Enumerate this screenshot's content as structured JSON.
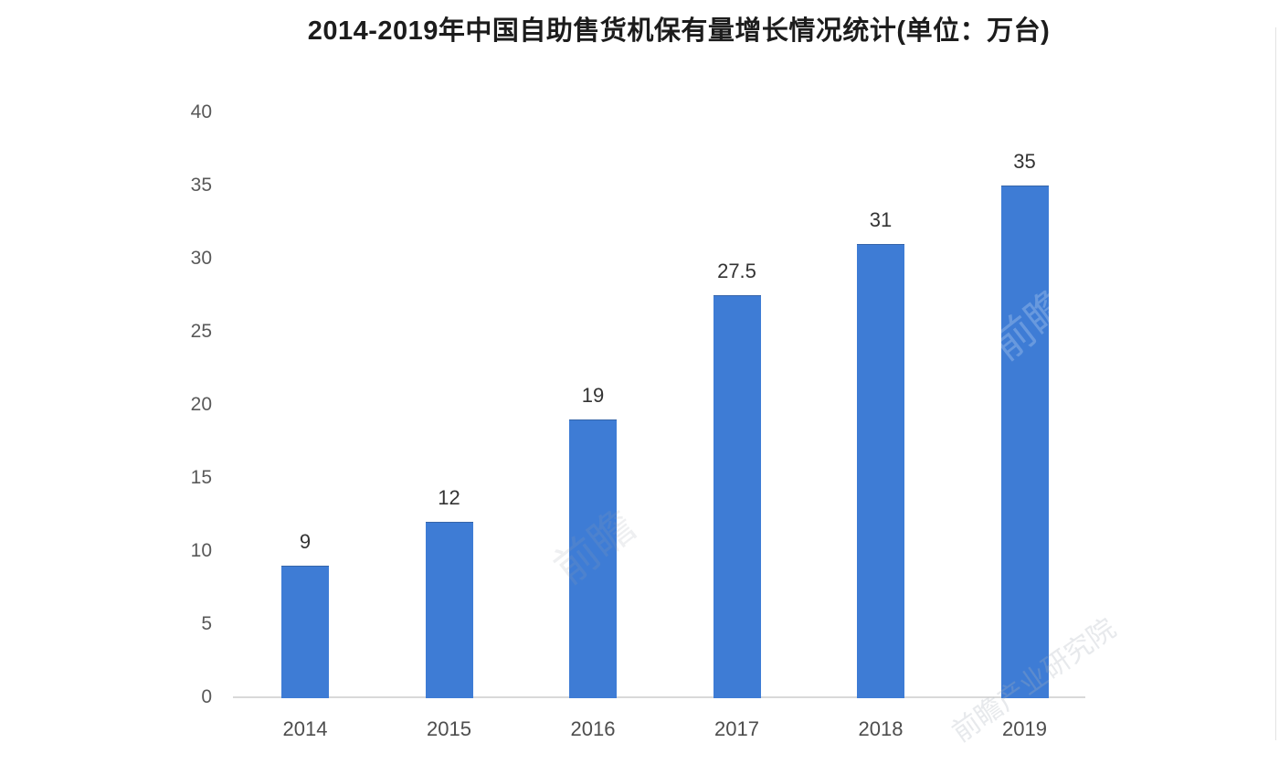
{
  "chart_data": {
    "type": "bar",
    "title": "2014-2019年中国自助售货机保有量增长情况统计(单位：万台)",
    "categories": [
      "2014",
      "2015",
      "2016",
      "2017",
      "2018",
      "2019"
    ],
    "values": [
      9,
      12,
      19,
      27.5,
      31,
      35
    ],
    "value_labels": [
      "9",
      "12",
      "19",
      "27.5",
      "31",
      "35"
    ],
    "xlabel": "",
    "ylabel": "",
    "ylim": [
      0,
      40
    ],
    "yticks": [
      0,
      5,
      10,
      15,
      20,
      25,
      30,
      35,
      40
    ],
    "grid": false,
    "legend_position": "none",
    "bar_color": "#3e7cd5",
    "title_color": "#1c1c1c",
    "value_label_color": "#333333",
    "tick_label_color": "#595959",
    "axis_line_color": "#d9d9d9"
  },
  "watermarks": [
    {
      "text": "前瞻"
    },
    {
      "text": "前瞻"
    },
    {
      "text": "前瞻产业研究院"
    }
  ]
}
